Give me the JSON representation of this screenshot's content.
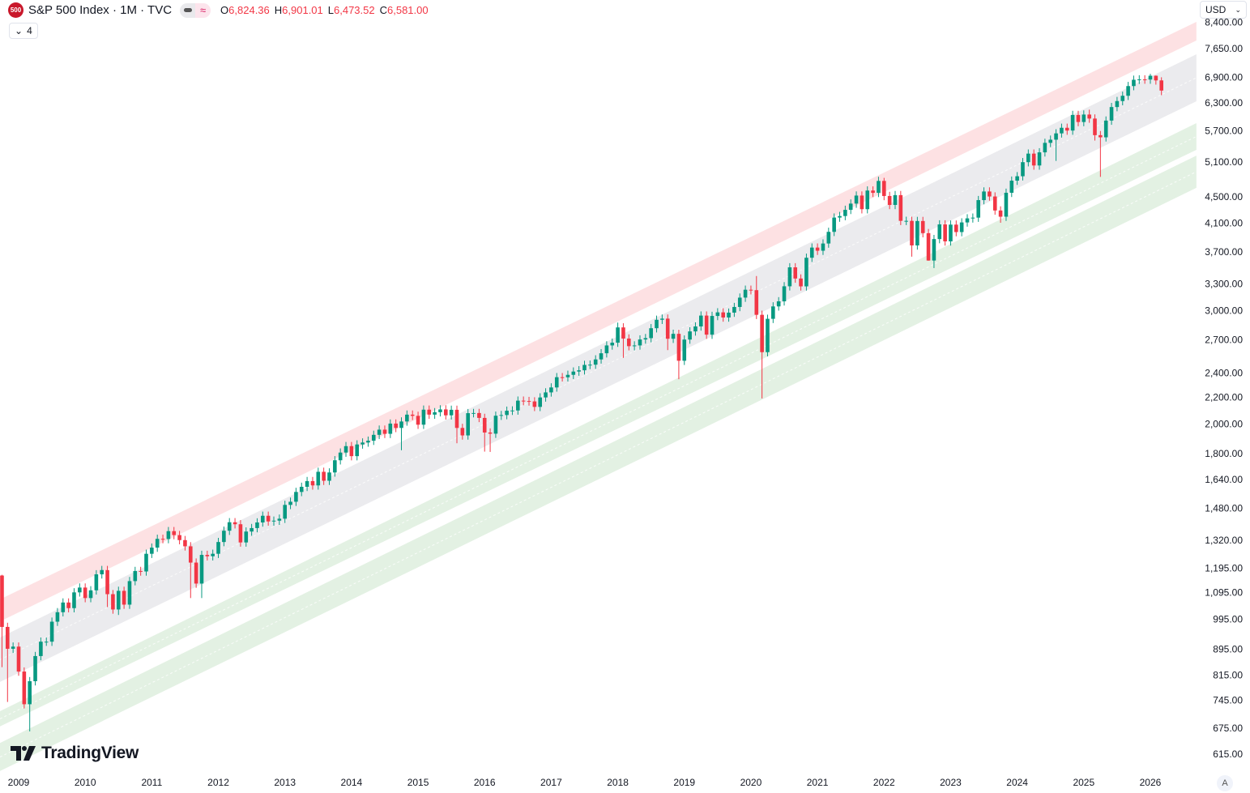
{
  "header": {
    "logo_text": "500",
    "symbol_title": "S&P 500 Index · 1M · TVC",
    "ohlc": {
      "o_label": "O",
      "o": "6,824.36",
      "h_label": "H",
      "h": "6,901.01",
      "l_label": "L",
      "l": "6,473.52",
      "c_label": "C",
      "c": "6,581.00"
    },
    "indicators_toggle": "4",
    "currency": "USD",
    "auto_scale": "A",
    "watermark": "TradingView"
  },
  "colors": {
    "up": "#089981",
    "down": "#f23645",
    "band_red": "#fde1e3",
    "band_gray": "#ebebee",
    "band_green": "#e3f1e3"
  },
  "chart_data": {
    "type": "candlestick",
    "title": "S&P 500 Index · 1M · TVC",
    "scale": "log",
    "start_month": "2008-10",
    "first_open": 1164,
    "closes": [
      968.75,
      896,
      903,
      826,
      735,
      798,
      873,
      919,
      919,
      987,
      1021,
      1057,
      1036,
      1096,
      1115,
      1074,
      1104,
      1169,
      1187,
      1089,
      1031,
      1102,
      1049,
      1141,
      1183,
      1181,
      1258,
      1286,
      1327,
      1326,
      1364,
      1345,
      1321,
      1292,
      1219,
      1131,
      1253,
      1247,
      1258,
      1312,
      1366,
      1408,
      1398,
      1310,
      1362,
      1379,
      1407,
      1441,
      1412,
      1416,
      1426,
      1498,
      1515,
      1569,
      1598,
      1631,
      1606,
      1686,
      1633,
      1682,
      1757,
      1806,
      1848,
      1783,
      1859,
      1872,
      1884,
      1924,
      1960,
      1931,
      2003,
      1972,
      2018,
      2068,
      2059,
      1995,
      2105,
      2068,
      2086,
      2107,
      2063,
      2104,
      1972,
      1920,
      2079,
      2080,
      2044,
      1940,
      1932,
      2060,
      2065,
      2097,
      2099,
      2174,
      2171,
      2168,
      2126,
      2199,
      2239,
      2279,
      2364,
      2363,
      2384,
      2412,
      2423,
      2470,
      2472,
      2519,
      2575,
      2648,
      2674,
      2824,
      2714,
      2641,
      2648,
      2705,
      2718,
      2816,
      2902,
      2914,
      2712,
      2760,
      2507,
      2704,
      2784,
      2834,
      2946,
      2752,
      2942,
      2980,
      2926,
      2977,
      3038,
      3141,
      3231,
      3226,
      2954,
      2585,
      2912,
      3044,
      3100,
      3271,
      3500,
      3363,
      3270,
      3622,
      3756,
      3714,
      3811,
      3973,
      4181,
      4204,
      4298,
      4395,
      4523,
      4308,
      4605,
      4567,
      4766,
      4516,
      4374,
      4530,
      4132,
      4132,
      3785,
      4130,
      3955,
      3586,
      3872,
      4080,
      3840,
      4077,
      3970,
      4109,
      4169,
      4180,
      4450,
      4589,
      4508,
      4288,
      4194,
      4568,
      4770,
      4846,
      5096,
      5254,
      5036,
      5278,
      5460,
      5522,
      5648,
      5762,
      5705,
      6032,
      5882,
      6041,
      5955,
      5612,
      5569,
      5912,
      6205,
      6339,
      6460,
      6688,
      6840,
      6849,
      6845,
      6939,
      6824.36,
      6581
    ],
    "default_wick_pct": 0.015,
    "high_overrides": {
      "2008-10": 1167,
      "2018-01": 2873,
      "2020-02": 3393,
      "2022-01": 4818,
      "2025-02": 6147,
      "2026-01": 6986,
      "2026-02": 6946,
      "2026-03": 6901.01
    },
    "low_overrides": {
      "2008-10": 839,
      "2008-11": 741,
      "2009-03": 667,
      "2010-05": 1040,
      "2010-07": 1011,
      "2011-08": 1074,
      "2011-10": 1074,
      "2014-10": 1821,
      "2015-08": 1867,
      "2016-01": 1812,
      "2016-02": 1810,
      "2018-02": 2533,
      "2018-10": 2604,
      "2018-12": 2347,
      "2020-03": 2191,
      "2022-06": 3636,
      "2022-09": 3584,
      "2022-10": 3491,
      "2023-10": 4104,
      "2024-08": 5119,
      "2025-03": 5505,
      "2025-04": 4835,
      "2026-03": 6473.52
    },
    "x_ticks": [
      "2009",
      "2010",
      "2011",
      "2012",
      "2013",
      "2014",
      "2015",
      "2016",
      "2017",
      "2018",
      "2019",
      "2020",
      "2021",
      "2022",
      "2023",
      "2024",
      "2025",
      "2026"
    ],
    "y_ticks": [
      {
        "value": 8400,
        "label": "8,400.00"
      },
      {
        "value": 7650,
        "label": "7,650.00"
      },
      {
        "value": 6900,
        "label": "6,900.00"
      },
      {
        "value": 6300,
        "label": "6,300.00"
      },
      {
        "value": 5700,
        "label": "5,700.00"
      },
      {
        "value": 5100,
        "label": "5,100.00"
      },
      {
        "value": 4500,
        "label": "4,500.00"
      },
      {
        "value": 4100,
        "label": "4,100.00"
      },
      {
        "value": 3700,
        "label": "3,700.00"
      },
      {
        "value": 3300,
        "label": "3,300.00"
      },
      {
        "value": 3000,
        "label": "3,000.00"
      },
      {
        "value": 2700,
        "label": "2,700.00"
      },
      {
        "value": 2400,
        "label": "2,400.00"
      },
      {
        "value": 2200,
        "label": "2,200.00"
      },
      {
        "value": 2000,
        "label": "2,000.00"
      },
      {
        "value": 1800,
        "label": "1,800.00"
      },
      {
        "value": 1640,
        "label": "1,640.00"
      },
      {
        "value": 1480,
        "label": "1,480.00"
      },
      {
        "value": 1320,
        "label": "1,320.00"
      },
      {
        "value": 1195,
        "label": "1,195.00"
      },
      {
        "value": 1095,
        "label": "1,095.00"
      },
      {
        "value": 995,
        "label": "995.00"
      },
      {
        "value": 895,
        "label": "895.00"
      },
      {
        "value": 815,
        "label": "815.00"
      },
      {
        "value": 745,
        "label": "745.00"
      },
      {
        "value": 675,
        "label": "675.00"
      },
      {
        "value": 615,
        "label": "615.00"
      }
    ],
    "channels": [
      {
        "name": "upper-red-band",
        "color": "band_red",
        "midline": false,
        "months": [
          -3.36,
          212.3
        ],
        "top": [
          1069,
          8413
        ],
        "bottom": [
          988,
          7871
        ]
      },
      {
        "name": "middle-gray-band",
        "color": "band_gray",
        "midline": true,
        "months": [
          -3.36,
          212.3
        ],
        "top": [
          933,
          7493
        ],
        "bottom": [
          796,
          6334
        ]
      },
      {
        "name": "green-band-1",
        "color": "band_green",
        "midline": true,
        "months": [
          -3.36,
          212.3
        ],
        "top": [
          717,
          5858
        ],
        "bottom": [
          679,
          5326
        ]
      },
      {
        "name": "green-band-2",
        "color": "band_green",
        "midline": true,
        "months": [
          -3.36,
          212.3
        ],
        "top": [
          640,
          5217
        ],
        "bottom": [
          579,
          4649
        ]
      }
    ]
  }
}
